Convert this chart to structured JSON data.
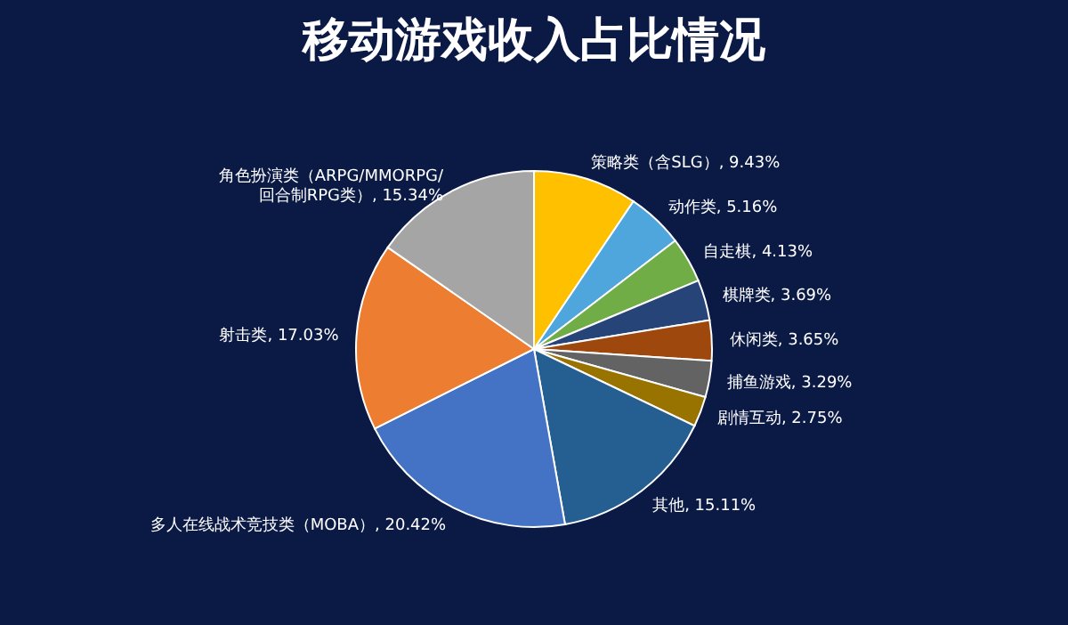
{
  "chart_data": {
    "type": "pie",
    "title": "移动游戏收入占比情况",
    "categories": [
      "策略类（含SLG）",
      "动作类",
      "自走棋",
      "棋牌类",
      "休闲类",
      "捕鱼游戏",
      "剧情互动",
      "其他",
      "多人在线战术竞技类（MOBA）",
      "射击类",
      "角色扮演类（ARPG/MMORPG/回合制RPG类）"
    ],
    "values": [
      9.43,
      5.16,
      4.13,
      3.69,
      3.65,
      3.29,
      2.75,
      15.11,
      20.42,
      17.03,
      15.34
    ],
    "value_labels": [
      "9.43%",
      "5.16%",
      "4.13%",
      "3.69%",
      "3.65%",
      "3.29%",
      "2.75%",
      "15.11%",
      "20.42%",
      "17.03%",
      "15.34%"
    ],
    "colors": [
      "#ffc000",
      "#4ea6dc",
      "#70ad47",
      "#264478",
      "#9e480e",
      "#636363",
      "#997300",
      "#255e91",
      "#4472c4",
      "#ed7d31",
      "#a5a5a5"
    ],
    "legend": false
  }
}
